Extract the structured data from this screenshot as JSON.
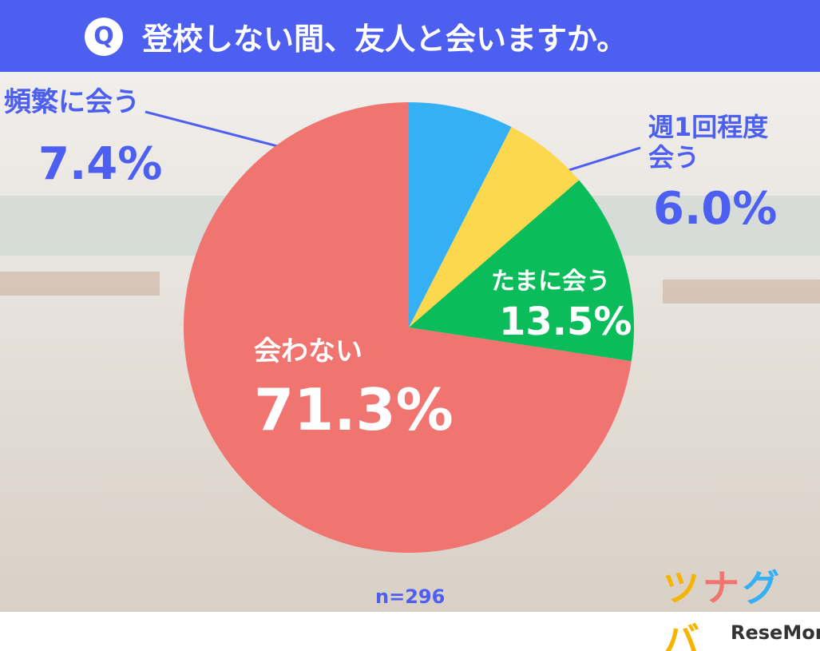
{
  "chart_data": {
    "type": "pie",
    "title": "登校しない間、友人と会いますか。",
    "icon": "Q",
    "categories": [
      "頻繁に会う",
      "週1回程度\n会う",
      "たまに会う",
      "会わない"
    ],
    "values": [
      7.4,
      6.0,
      13.5,
      71.3
    ],
    "value_labels": [
      "7.4%",
      "6.0%",
      "13.5%",
      "71.3%"
    ],
    "colors": [
      "#35b0f5",
      "#fcd84f",
      "#0bbd5a",
      "#f07470"
    ],
    "note": "n=296"
  },
  "brand": "ツナグバ",
  "source": "ReseMom"
}
